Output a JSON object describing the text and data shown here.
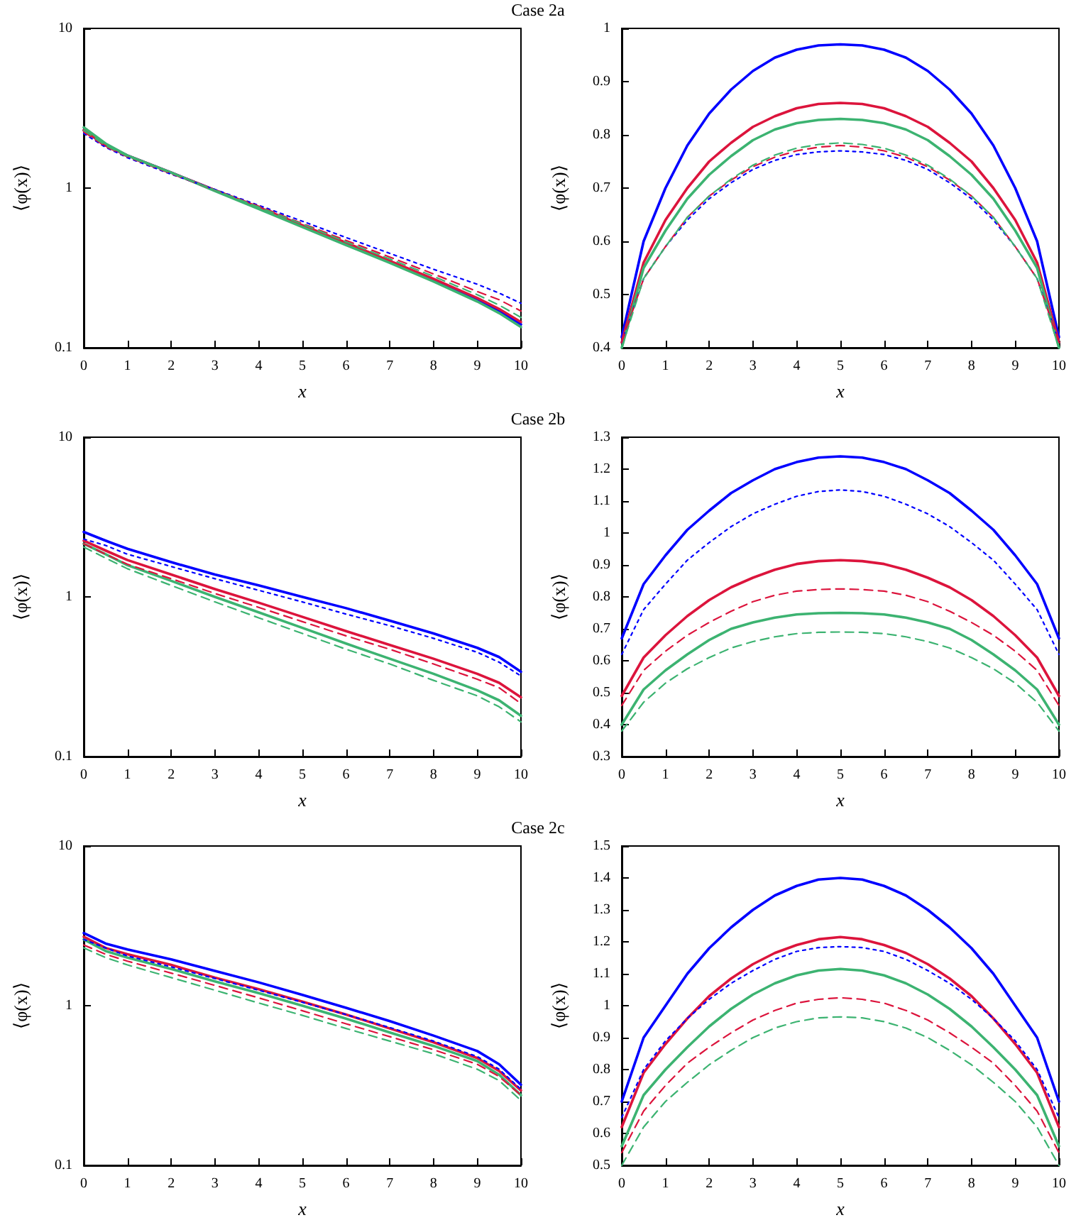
{
  "chart_data": [
    {
      "type": "line",
      "title": "Case 2a",
      "xlabel": "x",
      "ylabel": "⟨φ(x)⟩",
      "log": "y",
      "xlim": [
        0,
        10
      ],
      "xticks": [
        0,
        1,
        2,
        3,
        4,
        5,
        6,
        7,
        8,
        9,
        10
      ],
      "ylim": [
        0.1,
        10
      ],
      "yticks": [
        0.1,
        1,
        10
      ],
      "x": [
        0,
        0.5,
        1,
        2,
        3,
        4,
        5,
        6,
        7,
        8,
        9,
        9.5,
        10
      ],
      "series": [
        {
          "color": "#0000ff",
          "line_style": "solid",
          "values": [
            2.3,
            1.85,
            1.6,
            1.25,
            0.97,
            0.75,
            0.58,
            0.45,
            0.345,
            0.265,
            0.2,
            0.17,
            0.14
          ]
        },
        {
          "color": "#dc143c",
          "line_style": "solid",
          "values": [
            2.3,
            1.85,
            1.6,
            1.25,
            0.97,
            0.76,
            0.585,
            0.455,
            0.35,
            0.27,
            0.205,
            0.175,
            0.145
          ]
        },
        {
          "color": "#3cb371",
          "line_style": "solid",
          "values": [
            2.4,
            1.9,
            1.6,
            1.25,
            0.96,
            0.74,
            0.57,
            0.44,
            0.34,
            0.26,
            0.195,
            0.165,
            0.135
          ]
        },
        {
          "color": "#0000ff",
          "line_style": "dotted",
          "values": [
            2.2,
            1.8,
            1.55,
            1.22,
            0.98,
            0.78,
            0.62,
            0.49,
            0.39,
            0.31,
            0.25,
            0.22,
            0.19
          ]
        },
        {
          "color": "#dc143c",
          "line_style": "dashed",
          "values": [
            2.25,
            1.82,
            1.57,
            1.23,
            0.97,
            0.77,
            0.6,
            0.47,
            0.37,
            0.29,
            0.225,
            0.2,
            0.17
          ]
        },
        {
          "color": "#3cb371",
          "line_style": "dashed",
          "values": [
            2.3,
            1.85,
            1.58,
            1.24,
            0.97,
            0.76,
            0.595,
            0.46,
            0.36,
            0.28,
            0.215,
            0.185,
            0.155
          ]
        }
      ]
    },
    {
      "type": "line",
      "xlabel": "x",
      "ylabel": "⟨φ(x)⟩",
      "xlim": [
        0,
        10
      ],
      "xticks": [
        0,
        1,
        2,
        3,
        4,
        5,
        6,
        7,
        8,
        9,
        10
      ],
      "ylim": [
        0.4,
        1
      ],
      "yticks": [
        0.4,
        0.5,
        0.6,
        0.7,
        0.8,
        0.9,
        1
      ],
      "x": [
        0,
        0.5,
        1,
        1.5,
        2,
        2.5,
        3,
        3.5,
        4,
        4.5,
        5,
        5.5,
        6,
        6.5,
        7,
        7.5,
        8,
        8.5,
        9,
        9.5,
        10
      ],
      "series": [
        {
          "color": "#0000ff",
          "line_style": "solid",
          "values": [
            0.42,
            0.6,
            0.7,
            0.78,
            0.84,
            0.885,
            0.92,
            0.945,
            0.96,
            0.968,
            0.97,
            0.968,
            0.96,
            0.945,
            0.92,
            0.885,
            0.84,
            0.78,
            0.7,
            0.6,
            0.42
          ]
        },
        {
          "color": "#dc143c",
          "line_style": "solid",
          "values": [
            0.41,
            0.56,
            0.64,
            0.7,
            0.75,
            0.785,
            0.815,
            0.835,
            0.85,
            0.858,
            0.86,
            0.858,
            0.85,
            0.835,
            0.815,
            0.785,
            0.75,
            0.7,
            0.64,
            0.56,
            0.41
          ]
        },
        {
          "color": "#3cb371",
          "line_style": "solid",
          "values": [
            0.4,
            0.55,
            0.62,
            0.68,
            0.725,
            0.76,
            0.79,
            0.81,
            0.822,
            0.828,
            0.83,
            0.828,
            0.822,
            0.81,
            0.79,
            0.76,
            0.725,
            0.68,
            0.62,
            0.55,
            0.4
          ]
        },
        {
          "color": "#0000ff",
          "line_style": "dotted",
          "values": [
            0.41,
            0.53,
            0.59,
            0.64,
            0.68,
            0.71,
            0.735,
            0.752,
            0.763,
            0.768,
            0.77,
            0.768,
            0.763,
            0.752,
            0.735,
            0.71,
            0.68,
            0.64,
            0.59,
            0.53,
            0.41
          ]
        },
        {
          "color": "#dc143c",
          "line_style": "dashed",
          "values": [
            0.41,
            0.53,
            0.59,
            0.645,
            0.685,
            0.715,
            0.74,
            0.758,
            0.77,
            0.777,
            0.78,
            0.777,
            0.77,
            0.758,
            0.74,
            0.715,
            0.685,
            0.645,
            0.59,
            0.53,
            0.41
          ]
        },
        {
          "color": "#3cb371",
          "line_style": "dashed",
          "values": [
            0.4,
            0.53,
            0.59,
            0.645,
            0.685,
            0.717,
            0.743,
            0.762,
            0.775,
            0.782,
            0.785,
            0.782,
            0.775,
            0.762,
            0.743,
            0.717,
            0.685,
            0.645,
            0.59,
            0.53,
            0.4
          ]
        }
      ]
    },
    {
      "type": "line",
      "title": "Case 2b",
      "xlabel": "x",
      "ylabel": "⟨φ(x)⟩",
      "log": "y",
      "xlim": [
        0,
        10
      ],
      "xticks": [
        0,
        1,
        2,
        3,
        4,
        5,
        6,
        7,
        8,
        9,
        10
      ],
      "ylim": [
        0.1,
        10
      ],
      "yticks": [
        0.1,
        1,
        10
      ],
      "x": [
        0,
        0.5,
        1,
        2,
        3,
        4,
        5,
        6,
        7,
        8,
        9,
        9.5,
        10
      ],
      "series": [
        {
          "color": "#0000ff",
          "line_style": "solid",
          "values": [
            2.55,
            2.25,
            2.0,
            1.65,
            1.38,
            1.18,
            1.0,
            0.85,
            0.71,
            0.59,
            0.48,
            0.42,
            0.34
          ]
        },
        {
          "color": "#dc143c",
          "line_style": "solid",
          "values": [
            2.25,
            1.95,
            1.7,
            1.38,
            1.12,
            0.92,
            0.75,
            0.61,
            0.5,
            0.41,
            0.33,
            0.29,
            0.235
          ]
        },
        {
          "color": "#3cb371",
          "line_style": "solid",
          "values": [
            2.15,
            1.85,
            1.58,
            1.26,
            1.0,
            0.8,
            0.64,
            0.51,
            0.41,
            0.33,
            0.26,
            0.225,
            0.18
          ]
        },
        {
          "color": "#0000ff",
          "line_style": "dotted",
          "values": [
            2.3,
            2.1,
            1.85,
            1.55,
            1.3,
            1.1,
            0.93,
            0.78,
            0.66,
            0.55,
            0.45,
            0.39,
            0.32
          ]
        },
        {
          "color": "#dc143c",
          "line_style": "dashed",
          "values": [
            2.15,
            1.85,
            1.6,
            1.3,
            1.05,
            0.86,
            0.7,
            0.57,
            0.47,
            0.38,
            0.305,
            0.27,
            0.215
          ]
        },
        {
          "color": "#3cb371",
          "line_style": "dashed",
          "values": [
            2.05,
            1.75,
            1.5,
            1.18,
            0.93,
            0.74,
            0.59,
            0.47,
            0.38,
            0.3,
            0.24,
            0.205,
            0.165
          ]
        }
      ]
    },
    {
      "type": "line",
      "xlabel": "x",
      "ylabel": "⟨φ(x)⟩",
      "xlim": [
        0,
        10
      ],
      "xticks": [
        0,
        1,
        2,
        3,
        4,
        5,
        6,
        7,
        8,
        9,
        10
      ],
      "ylim": [
        0.3,
        1.3
      ],
      "yticks": [
        0.3,
        0.4,
        0.5,
        0.6,
        0.7,
        0.8,
        0.9,
        1,
        1.1,
        1.2,
        1.3
      ],
      "x": [
        0,
        0.5,
        1,
        1.5,
        2,
        2.5,
        3,
        3.5,
        4,
        4.5,
        5,
        5.5,
        6,
        6.5,
        7,
        7.5,
        8,
        8.5,
        9,
        9.5,
        10
      ],
      "series": [
        {
          "color": "#0000ff",
          "line_style": "solid",
          "values": [
            0.67,
            0.84,
            0.93,
            1.01,
            1.07,
            1.125,
            1.165,
            1.2,
            1.222,
            1.236,
            1.24,
            1.236,
            1.222,
            1.2,
            1.165,
            1.125,
            1.07,
            1.01,
            0.93,
            0.84,
            0.67
          ]
        },
        {
          "color": "#dc143c",
          "line_style": "solid",
          "values": [
            0.49,
            0.61,
            0.68,
            0.74,
            0.79,
            0.83,
            0.86,
            0.885,
            0.903,
            0.912,
            0.915,
            0.912,
            0.903,
            0.885,
            0.86,
            0.83,
            0.79,
            0.74,
            0.68,
            0.61,
            0.49
          ]
        },
        {
          "color": "#3cb371",
          "line_style": "solid",
          "values": [
            0.4,
            0.51,
            0.57,
            0.62,
            0.665,
            0.7,
            0.72,
            0.735,
            0.745,
            0.749,
            0.75,
            0.749,
            0.745,
            0.735,
            0.72,
            0.7,
            0.665,
            0.62,
            0.57,
            0.51,
            0.4
          ]
        },
        {
          "color": "#0000ff",
          "line_style": "dotted",
          "values": [
            0.62,
            0.76,
            0.84,
            0.915,
            0.97,
            1.02,
            1.06,
            1.09,
            1.115,
            1.13,
            1.135,
            1.13,
            1.115,
            1.09,
            1.06,
            1.02,
            0.97,
            0.915,
            0.84,
            0.76,
            0.62
          ]
        },
        {
          "color": "#dc143c",
          "line_style": "dashed",
          "values": [
            0.46,
            0.57,
            0.63,
            0.68,
            0.72,
            0.755,
            0.785,
            0.805,
            0.818,
            0.823,
            0.825,
            0.823,
            0.818,
            0.805,
            0.785,
            0.755,
            0.72,
            0.68,
            0.63,
            0.57,
            0.46
          ]
        },
        {
          "color": "#3cb371",
          "line_style": "dashed",
          "values": [
            0.38,
            0.47,
            0.53,
            0.575,
            0.61,
            0.64,
            0.66,
            0.675,
            0.685,
            0.689,
            0.69,
            0.689,
            0.685,
            0.675,
            0.66,
            0.64,
            0.61,
            0.575,
            0.53,
            0.47,
            0.38
          ]
        }
      ]
    },
    {
      "type": "line",
      "title": "Case 2c",
      "xlabel": "x",
      "ylabel": "⟨φ(x)⟩",
      "log": "y",
      "xlim": [
        0,
        10
      ],
      "xticks": [
        0,
        1,
        2,
        3,
        4,
        5,
        6,
        7,
        8,
        9,
        10
      ],
      "ylim": [
        0.1,
        10
      ],
      "yticks": [
        0.1,
        1,
        10
      ],
      "x": [
        0,
        0.5,
        1,
        2,
        3,
        4,
        5,
        6,
        7,
        8,
        9,
        9.5,
        10
      ],
      "series": [
        {
          "color": "#0000ff",
          "line_style": "solid",
          "values": [
            2.85,
            2.45,
            2.25,
            1.95,
            1.65,
            1.4,
            1.17,
            0.97,
            0.8,
            0.65,
            0.52,
            0.43,
            0.32
          ]
        },
        {
          "color": "#dc143c",
          "line_style": "solid",
          "values": [
            2.7,
            2.3,
            2.1,
            1.8,
            1.5,
            1.27,
            1.06,
            0.88,
            0.72,
            0.59,
            0.47,
            0.39,
            0.295
          ]
        },
        {
          "color": "#3cb371",
          "line_style": "solid",
          "values": [
            2.6,
            2.2,
            2.0,
            1.7,
            1.42,
            1.2,
            1.0,
            0.83,
            0.68,
            0.56,
            0.45,
            0.37,
            0.275
          ]
        },
        {
          "color": "#0000ff",
          "line_style": "dotted",
          "values": [
            2.6,
            2.3,
            2.05,
            1.75,
            1.48,
            1.25,
            1.05,
            0.88,
            0.73,
            0.6,
            0.48,
            0.4,
            0.3
          ]
        },
        {
          "color": "#dc143c",
          "line_style": "dashed",
          "values": [
            2.4,
            2.1,
            1.9,
            1.6,
            1.34,
            1.12,
            0.93,
            0.77,
            0.64,
            0.53,
            0.43,
            0.36,
            0.275
          ]
        },
        {
          "color": "#3cb371",
          "line_style": "dashed",
          "values": [
            2.3,
            2.0,
            1.8,
            1.5,
            1.25,
            1.04,
            0.87,
            0.72,
            0.6,
            0.5,
            0.4,
            0.34,
            0.255
          ]
        }
      ]
    },
    {
      "type": "line",
      "xlabel": "x",
      "ylabel": "⟨φ(x)⟩",
      "xlim": [
        0,
        10
      ],
      "xticks": [
        0,
        1,
        2,
        3,
        4,
        5,
        6,
        7,
        8,
        9,
        10
      ],
      "ylim": [
        0.5,
        1.5
      ],
      "yticks": [
        0.5,
        0.6,
        0.7,
        0.8,
        0.9,
        1,
        1.1,
        1.2,
        1.3,
        1.4,
        1.5
      ],
      "x": [
        0,
        0.5,
        1,
        1.5,
        2,
        2.5,
        3,
        3.5,
        4,
        4.5,
        5,
        5.5,
        6,
        6.5,
        7,
        7.5,
        8,
        8.5,
        9,
        9.5,
        10
      ],
      "series": [
        {
          "color": "#0000ff",
          "line_style": "solid",
          "values": [
            0.7,
            0.9,
            1.0,
            1.1,
            1.18,
            1.245,
            1.3,
            1.345,
            1.375,
            1.395,
            1.4,
            1.395,
            1.375,
            1.345,
            1.3,
            1.245,
            1.18,
            1.1,
            1.0,
            0.9,
            0.7
          ]
        },
        {
          "color": "#dc143c",
          "line_style": "solid",
          "values": [
            0.62,
            0.79,
            0.88,
            0.96,
            1.03,
            1.085,
            1.13,
            1.165,
            1.19,
            1.208,
            1.215,
            1.208,
            1.19,
            1.165,
            1.13,
            1.085,
            1.03,
            0.96,
            0.88,
            0.79,
            0.62
          ]
        },
        {
          "color": "#3cb371",
          "line_style": "solid",
          "values": [
            0.56,
            0.72,
            0.8,
            0.87,
            0.935,
            0.99,
            1.035,
            1.07,
            1.095,
            1.11,
            1.115,
            1.11,
            1.095,
            1.07,
            1.035,
            0.99,
            0.935,
            0.87,
            0.8,
            0.72,
            0.56
          ]
        },
        {
          "color": "#0000ff",
          "line_style": "dotted",
          "values": [
            0.65,
            0.8,
            0.89,
            0.96,
            1.02,
            1.07,
            1.11,
            1.145,
            1.17,
            1.182,
            1.185,
            1.182,
            1.17,
            1.145,
            1.11,
            1.07,
            1.02,
            0.96,
            0.89,
            0.8,
            0.65
          ]
        },
        {
          "color": "#dc143c",
          "line_style": "dashed",
          "values": [
            0.54,
            0.67,
            0.75,
            0.82,
            0.87,
            0.915,
            0.955,
            0.985,
            1.008,
            1.02,
            1.025,
            1.02,
            1.008,
            0.985,
            0.955,
            0.915,
            0.87,
            0.82,
            0.75,
            0.67,
            0.54
          ]
        },
        {
          "color": "#3cb371",
          "line_style": "dashed",
          "values": [
            0.5,
            0.62,
            0.7,
            0.76,
            0.815,
            0.86,
            0.9,
            0.93,
            0.95,
            0.962,
            0.965,
            0.962,
            0.95,
            0.93,
            0.9,
            0.86,
            0.815,
            0.76,
            0.7,
            0.62,
            0.5
          ]
        }
      ]
    }
  ]
}
